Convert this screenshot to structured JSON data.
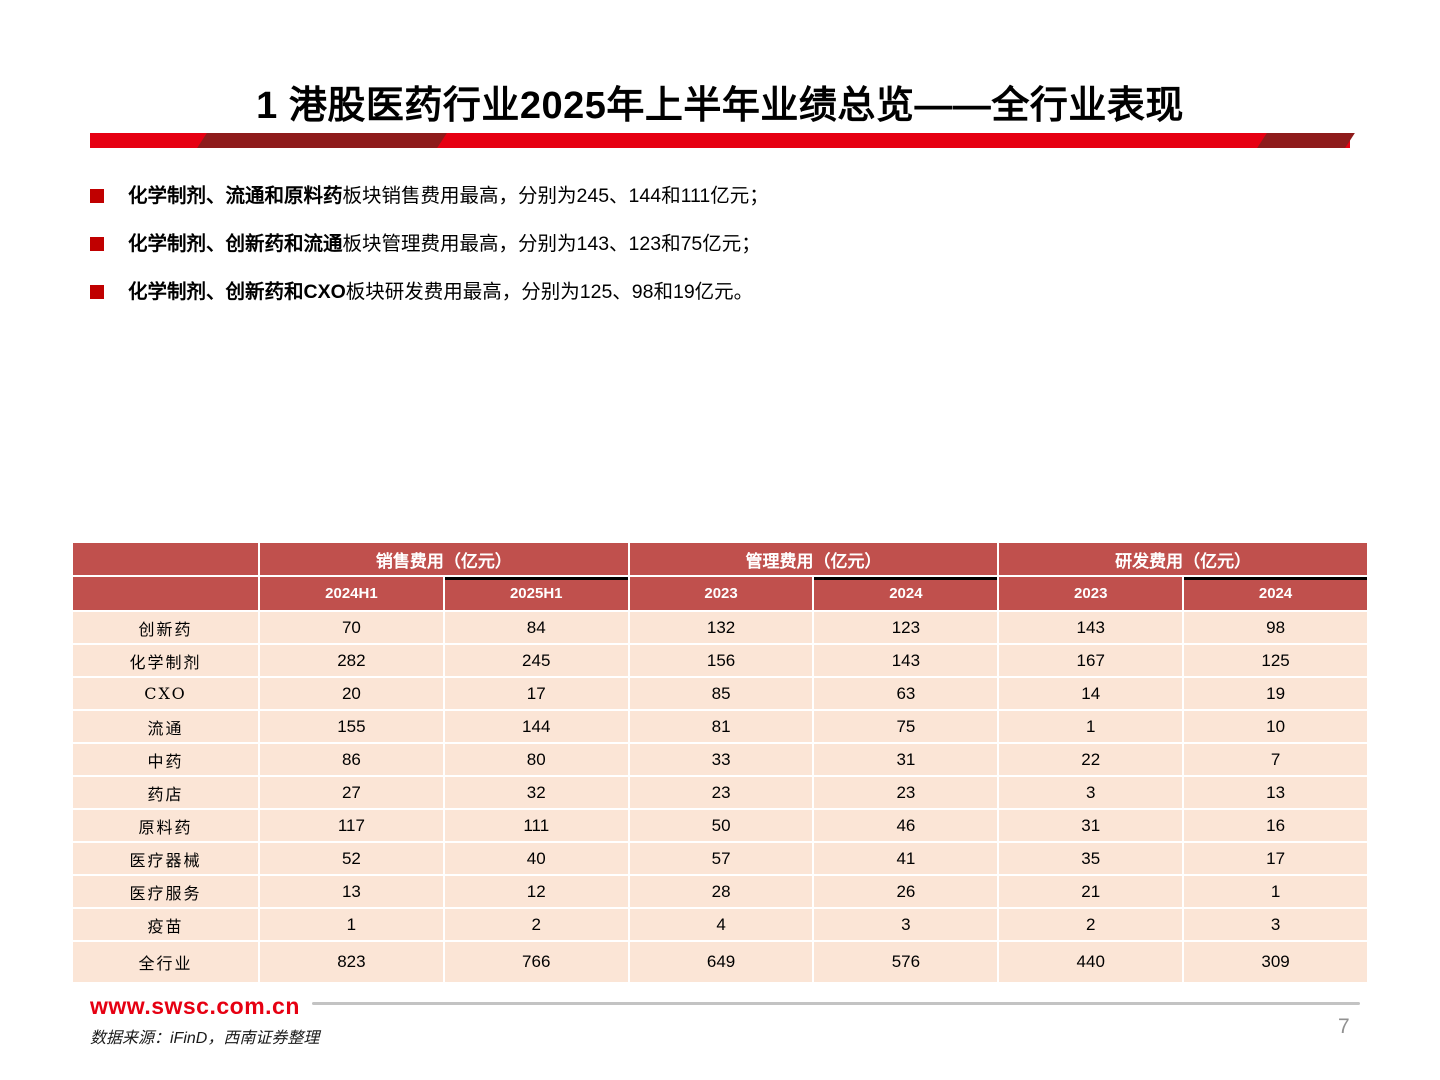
{
  "title": "1 港股医药行业2025年上半年业绩总览——全行业表现",
  "bullets": [
    {
      "lead": "化学制剂、流通和原料药",
      "rest": "板块销售费用最高，分别为245、144和111亿元；"
    },
    {
      "lead": "化学制剂、创新药和流通",
      "rest": "板块管理费用最高，分别为143、123和75亿元；"
    },
    {
      "lead": "化学制剂、创新药和CXO",
      "rest": "板块研发费用最高，分别为125、98和19亿元。"
    }
  ],
  "table": {
    "group_headers": [
      {
        "label": "销售费用（亿元）"
      },
      {
        "label": "管理费用（亿元）"
      },
      {
        "label": "研发费用（亿元）"
      }
    ],
    "sub_headers": [
      "2024H1",
      "2025H1",
      "2023",
      "2024",
      "2023",
      "2024"
    ],
    "black_underline_subcolumns": [
      1,
      3,
      5
    ],
    "rows": [
      {
        "label": "创新药",
        "values": [
          "70",
          "84",
          "132",
          "123",
          "143",
          "98"
        ]
      },
      {
        "label": "化学制剂",
        "values": [
          "282",
          "245",
          "156",
          "143",
          "167",
          "125"
        ]
      },
      {
        "label": "CXO",
        "values": [
          "20",
          "17",
          "85",
          "63",
          "14",
          "19"
        ]
      },
      {
        "label": "流通",
        "values": [
          "155",
          "144",
          "81",
          "75",
          "1",
          "10"
        ]
      },
      {
        "label": "中药",
        "values": [
          "86",
          "80",
          "33",
          "31",
          "22",
          "7"
        ]
      },
      {
        "label": "药店",
        "values": [
          "27",
          "32",
          "23",
          "23",
          "3",
          "13"
        ]
      },
      {
        "label": "原料药",
        "values": [
          "117",
          "111",
          "50",
          "46",
          "31",
          "16"
        ]
      },
      {
        "label": "医疗器械",
        "values": [
          "52",
          "40",
          "57",
          "41",
          "35",
          "17"
        ]
      },
      {
        "label": "医疗服务",
        "values": [
          "13",
          "12",
          "28",
          "26",
          "21",
          "1"
        ]
      },
      {
        "label": "疫苗",
        "values": [
          "1",
          "2",
          "4",
          "3",
          "2",
          "3"
        ]
      },
      {
        "label": "全行业",
        "values": [
          "823",
          "766",
          "649",
          "576",
          "440",
          "309"
        ],
        "is_total": true
      }
    ]
  },
  "footer": {
    "website": "www.swsc.com.cn",
    "source_note": "数据来源：iFinD，西南证券整理",
    "page_number": "7"
  },
  "colors": {
    "brand_red": "#E60012",
    "dark_red": "#8E1B1B",
    "bullet_red": "#C00000",
    "table_header_bg": "#C0504D",
    "table_body_bg": "#FBE5D6",
    "divider_gray": "#C3C3C3"
  }
}
